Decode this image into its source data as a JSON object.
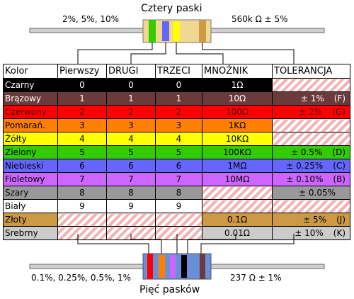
{
  "top": {
    "title": "Cztery paski",
    "left_label": "2%, 5%, 10%",
    "right_label": "560k Ω   ± 5%"
  },
  "bottom": {
    "title": "Pięć pasków",
    "left_label": "0.1%, 0.25%, 0.5%, 1%",
    "right_label": "237 Ω   ± 1%"
  },
  "table": {
    "headers": [
      "Kolor",
      "Pierwszy",
      "DRUGI",
      "TRZECI",
      "MNOŻNIK",
      "TOLERANCJA"
    ],
    "rows": [
      {
        "name": "Czarny",
        "first": "0",
        "second": "0",
        "third": "0",
        "mult": "1Ω",
        "tol": "",
        "tol_code": "",
        "bg": "#000000",
        "fg": "#ffffff"
      },
      {
        "name": "Brązowy",
        "first": "1",
        "second": "1",
        "third": "1",
        "mult": "10Ω",
        "tol": "± 1%",
        "tol_code": "(F)",
        "bg": "#6b3a3a",
        "fg": "#ffffff"
      },
      {
        "name": "Czerwony",
        "first": "2",
        "second": "2",
        "third": "2",
        "mult": "100Ω",
        "tol": "± 2%",
        "tol_code": "(G)",
        "bg": "#ff0000",
        "fg": "#4a0000"
      },
      {
        "name": "Pomarań.",
        "first": "3",
        "second": "3",
        "third": "3",
        "mult": "1KΩ",
        "tol": "",
        "tol_code": "",
        "bg": "#ff8000",
        "fg": "#000000"
      },
      {
        "name": "Żółty",
        "first": "4",
        "second": "4",
        "third": "4",
        "mult": "10KΩ",
        "tol": "",
        "tol_code": "",
        "bg": "#ffff00",
        "fg": "#000000"
      },
      {
        "name": "Zielony",
        "first": "5",
        "second": "5",
        "third": "5",
        "mult": "100KΩ",
        "tol": "± 0.5%",
        "tol_code": "(D)",
        "bg": "#33cc00",
        "fg": "#000000"
      },
      {
        "name": "Niebieski",
        "first": "6",
        "second": "6",
        "third": "6",
        "mult": "1MΩ",
        "tol": "± 0.25%",
        "tol_code": "(C)",
        "bg": "#6666ff",
        "fg": "#000000"
      },
      {
        "name": "Fioletowy",
        "first": "7",
        "second": "7",
        "third": "7",
        "mult": "10MΩ",
        "tol": "± 0.10%",
        "tol_code": "(B)",
        "bg": "#cc66ff",
        "fg": "#000000"
      },
      {
        "name": "Szary",
        "first": "8",
        "second": "8",
        "third": "8",
        "mult": "",
        "tol": "± 0.05%",
        "tol_code": "",
        "bg": "#999999",
        "fg": "#000000"
      },
      {
        "name": "Biały",
        "first": "9",
        "second": "9",
        "third": "9",
        "mult": "",
        "tol": "",
        "tol_code": "",
        "bg": "#ffffff",
        "fg": "#000000"
      },
      {
        "name": "Złoty",
        "first": "",
        "second": "",
        "third": "",
        "mult": "0.1Ω",
        "tol": "± 5%",
        "tol_code": "(J)",
        "bg": "#cc9944",
        "fg": "#000000"
      },
      {
        "name": "Srebrny",
        "first": "",
        "second": "",
        "third": "",
        "mult": "0.01Ω",
        "tol": "± 10%",
        "tol_code": "(K)",
        "bg": "#cccccc",
        "fg": "#000000"
      }
    ]
  },
  "colors": {
    "lead": "#d0d0d0",
    "lead_edge": "#666666",
    "body": "#f0d890",
    "stripe_empty": "#f4b3b3",
    "top_bands": [
      "#33cc00",
      "#6666ff",
      "#ffff00",
      "#cc9944"
    ],
    "bottom_bands": [
      "#ff0000",
      "#ff8000",
      "#cc66ff",
      "#000000",
      "#6b3a3a"
    ]
  }
}
